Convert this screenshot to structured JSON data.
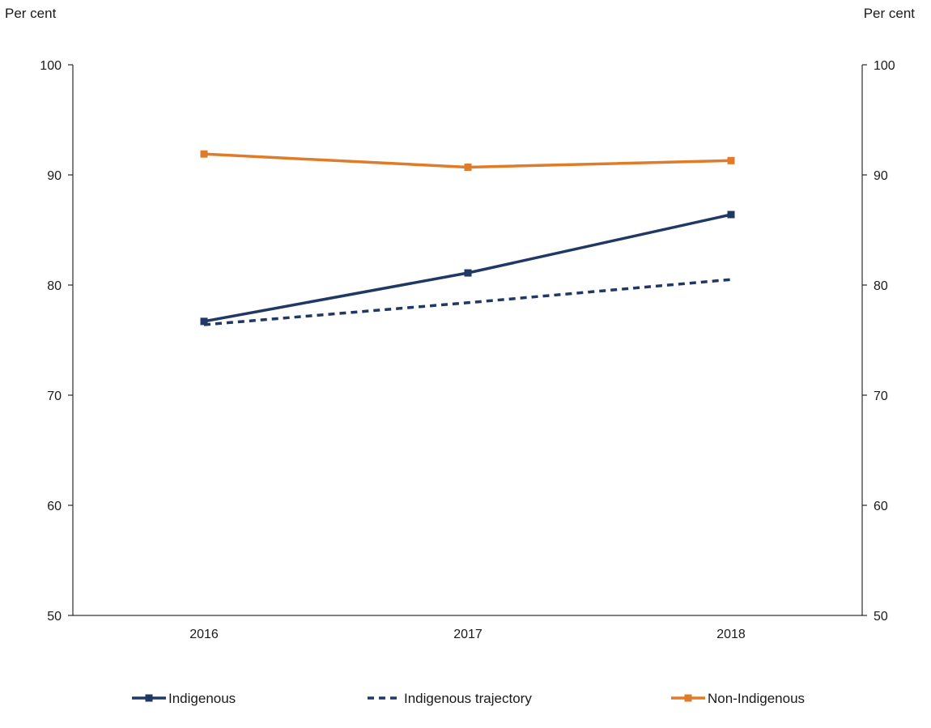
{
  "chart_data": {
    "type": "line",
    "title": "",
    "left_axis_unit": "Per cent",
    "right_axis_unit": "Per cent",
    "categories": [
      "2016",
      "2017",
      "2018"
    ],
    "ylim": [
      50,
      100
    ],
    "yticks": [
      50,
      60,
      70,
      80,
      90,
      100
    ],
    "grid": false,
    "legend_position": "bottom",
    "series": [
      {
        "name": "Indigenous",
        "values": [
          76.7,
          81.1,
          86.4
        ],
        "color": "#1f3864",
        "style": "solid",
        "marker": "square"
      },
      {
        "name": "Indigenous trajectory",
        "values": [
          76.4,
          78.4,
          80.5
        ],
        "color": "#1f3864",
        "style": "dashed",
        "marker": "none"
      },
      {
        "name": "Non-Indigenous",
        "values": [
          91.9,
          90.7,
          91.3
        ],
        "color": "#e07b28",
        "style": "solid",
        "marker": "square"
      }
    ]
  }
}
